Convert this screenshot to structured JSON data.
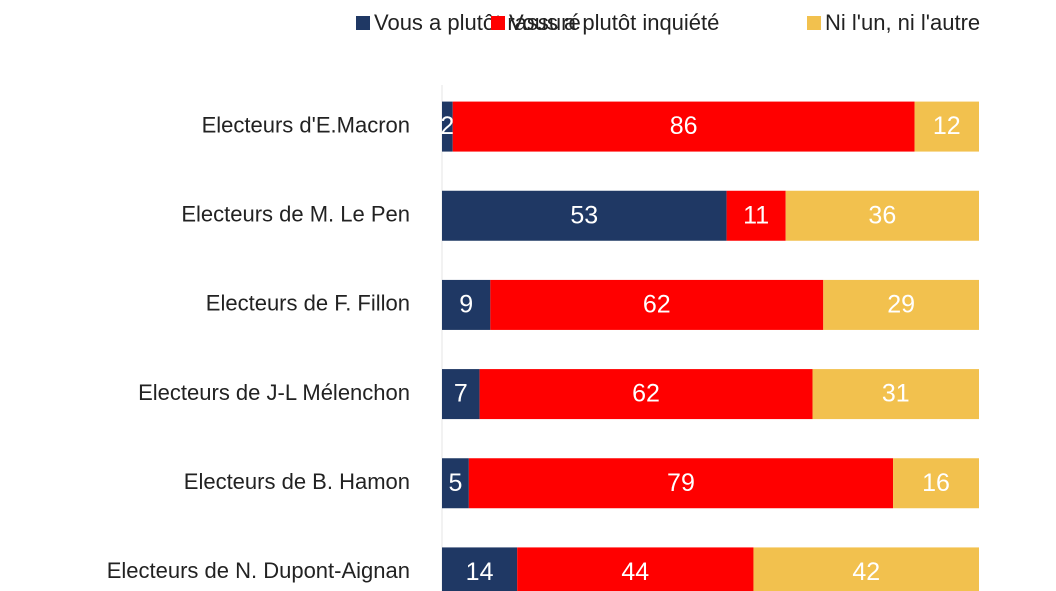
{
  "chart_data": {
    "type": "stacked-bar-horizontal",
    "categories": [
      "Electeurs d'E.Macron",
      "Electeurs de M. Le Pen",
      "Electeurs de F. Fillon",
      "Electeurs de J-L Mélenchon",
      "Electeurs de B. Hamon",
      "Electeurs de N. Dupont-Aignan"
    ],
    "series": [
      {
        "name": "Vous a plutôt rassuré",
        "color": "#1f3864",
        "values": [
          2,
          53,
          9,
          7,
          5,
          14
        ]
      },
      {
        "name": "Vous a plutôt inquiété",
        "color": "#ff0000",
        "values": [
          86,
          11,
          62,
          62,
          79,
          44
        ]
      },
      {
        "name": "Ni l'un, ni l'autre",
        "color": "#f2c14e",
        "values": [
          12,
          36,
          29,
          31,
          16,
          42
        ]
      }
    ],
    "xlim": [
      0,
      100
    ],
    "legend": "top"
  }
}
